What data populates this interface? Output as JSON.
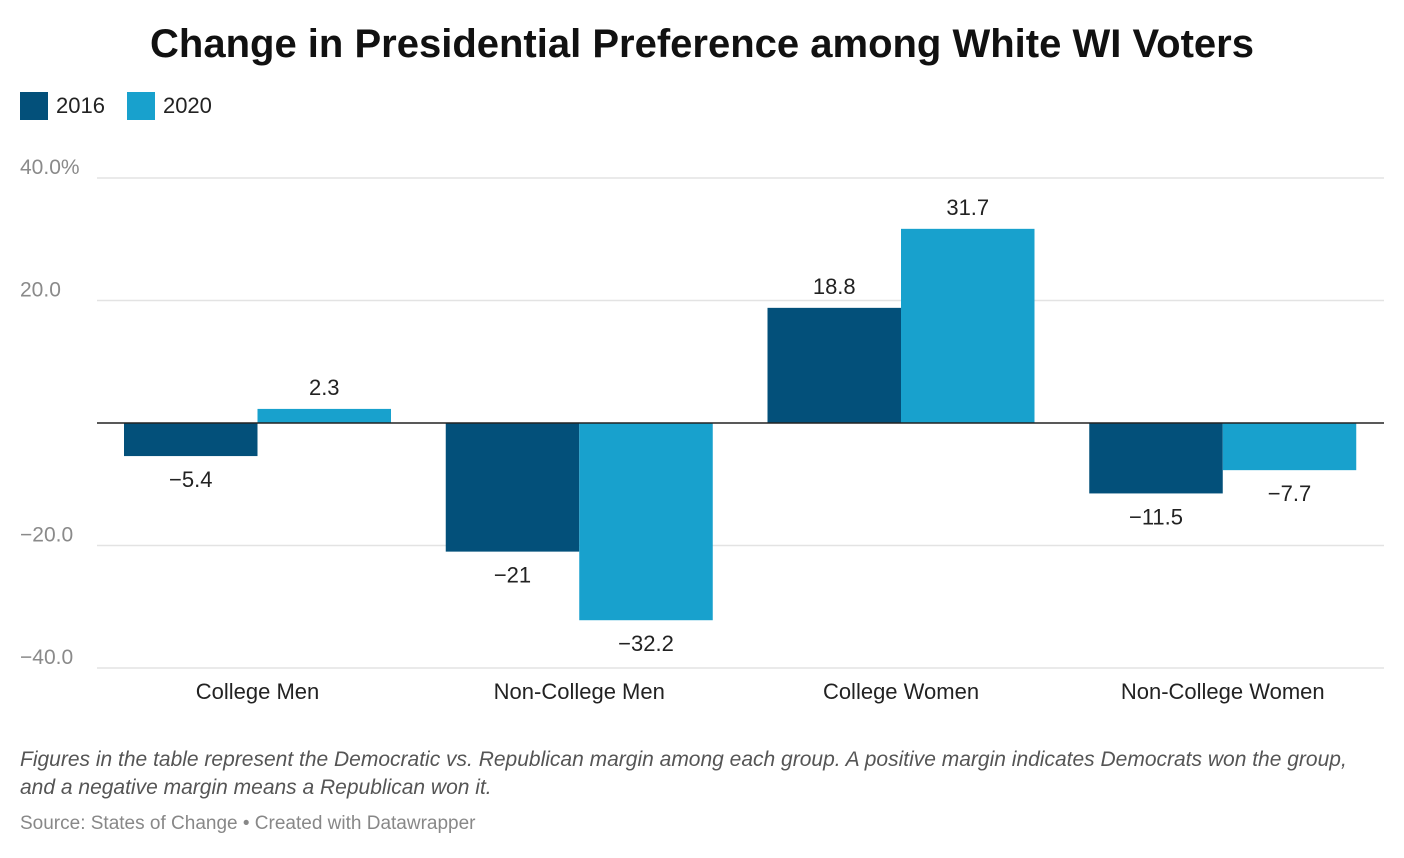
{
  "chart_data": {
    "type": "bar",
    "title": "Change in Presidential Preference among White WI Voters",
    "categories": [
      "College Men",
      "Non-College Men",
      "College Women",
      "Non-College Women"
    ],
    "series": [
      {
        "name": "2016",
        "color": "#03507a",
        "values": [
          -5.4,
          -21,
          18.8,
          -11.5
        ]
      },
      {
        "name": "2020",
        "color": "#18a1cd",
        "values": [
          2.3,
          -32.2,
          31.7,
          -7.7
        ]
      }
    ],
    "ylim": [
      -40,
      40
    ],
    "yticks": [
      40,
      20,
      -20,
      -40
    ],
    "ytick_labels": [
      "40.0%",
      "20.0",
      "−20.0",
      "−40.0"
    ],
    "value_labels": [
      [
        "−5.4",
        "−21",
        "18.8",
        "−11.5"
      ],
      [
        "2.3",
        "−32.2",
        "31.7",
        "−7.7"
      ]
    ],
    "legend": "top-left",
    "xlabel": "",
    "ylabel": ""
  },
  "note": "Figures in the table represent the Democratic vs. Republican margin among each group. A positive margin indicates Democrats won the group, and a negative margin means a Republican won it.",
  "source": "Source: States of Change • Created with Datawrapper"
}
